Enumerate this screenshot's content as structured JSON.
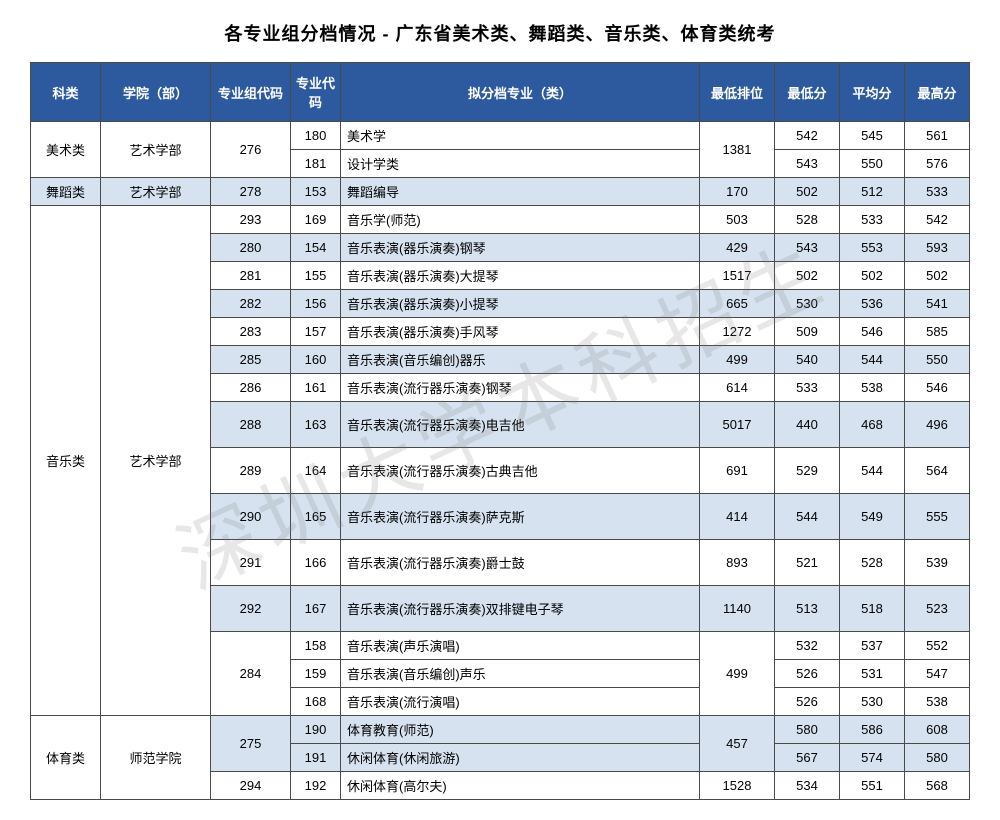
{
  "title": "各专业组分档情况 - 广东省美术类、舞蹈类、音乐类、体育类统考",
  "watermark": "深圳大学本科招生",
  "header_bg": "#2d5a9e",
  "alt_row_bg": "#d6e2ef",
  "plain_row_bg": "#ffffff",
  "columns": [
    "科类",
    "学院（部）",
    "专业组代码",
    "专业代码",
    "拟分档专业（类）",
    "最低排位",
    "最低分",
    "平均分",
    "最高分"
  ],
  "col_widths": [
    "70px",
    "110px",
    "80px",
    "50px",
    "auto",
    "75px",
    "65px",
    "65px",
    "65px"
  ],
  "groups": [
    {
      "category": "美术类",
      "college": "艺术学部",
      "alt": false,
      "codes": [
        {
          "code": "276",
          "rank": "1381",
          "alt": false,
          "rows": [
            {
              "mcode": "180",
              "major": "美术学",
              "min": "542",
              "avg": "545",
              "max": "561"
            },
            {
              "mcode": "181",
              "major": "设计学类",
              "min": "543",
              "avg": "550",
              "max": "576"
            }
          ]
        }
      ]
    },
    {
      "category": "舞蹈类",
      "college": "艺术学部",
      "alt": true,
      "codes": [
        {
          "code": "278",
          "rank": "170",
          "alt": true,
          "rows": [
            {
              "mcode": "153",
              "major": "舞蹈编导",
              "min": "502",
              "avg": "512",
              "max": "533"
            }
          ]
        }
      ]
    },
    {
      "category": "音乐类",
      "college": "艺术学部",
      "alt": false,
      "codes": [
        {
          "code": "293",
          "rank": "503",
          "alt": false,
          "rows": [
            {
              "mcode": "169",
              "major": "音乐学(师范)",
              "min": "528",
              "avg": "533",
              "max": "542"
            }
          ]
        },
        {
          "code": "280",
          "rank": "429",
          "alt": true,
          "rows": [
            {
              "mcode": "154",
              "major": "音乐表演(器乐演奏)钢琴",
              "min": "543",
              "avg": "553",
              "max": "593"
            }
          ]
        },
        {
          "code": "281",
          "rank": "1517",
          "alt": false,
          "rows": [
            {
              "mcode": "155",
              "major": "音乐表演(器乐演奏)大提琴",
              "min": "502",
              "avg": "502",
              "max": "502"
            }
          ]
        },
        {
          "code": "282",
          "rank": "665",
          "alt": true,
          "rows": [
            {
              "mcode": "156",
              "major": "音乐表演(器乐演奏)小提琴",
              "min": "530",
              "avg": "536",
              "max": "541"
            }
          ]
        },
        {
          "code": "283",
          "rank": "1272",
          "alt": false,
          "rows": [
            {
              "mcode": "157",
              "major": "音乐表演(器乐演奏)手风琴",
              "min": "509",
              "avg": "546",
              "max": "585"
            }
          ]
        },
        {
          "code": "285",
          "rank": "499",
          "alt": true,
          "rows": [
            {
              "mcode": "160",
              "major": "音乐表演(音乐编创)器乐",
              "min": "540",
              "avg": "544",
              "max": "550"
            }
          ]
        },
        {
          "code": "286",
          "rank": "614",
          "alt": false,
          "rows": [
            {
              "mcode": "161",
              "major": "音乐表演(流行器乐演奏)钢琴",
              "min": "533",
              "avg": "538",
              "max": "546"
            }
          ]
        },
        {
          "code": "288",
          "rank": "5017",
          "alt": true,
          "tall": true,
          "rows": [
            {
              "mcode": "163",
              "major": "音乐表演(流行器乐演奏)电吉他",
              "min": "440",
              "avg": "468",
              "max": "496"
            }
          ]
        },
        {
          "code": "289",
          "rank": "691",
          "alt": false,
          "tall": true,
          "rows": [
            {
              "mcode": "164",
              "major": "音乐表演(流行器乐演奏)古典吉他",
              "min": "529",
              "avg": "544",
              "max": "564"
            }
          ]
        },
        {
          "code": "290",
          "rank": "414",
          "alt": true,
          "tall": true,
          "rows": [
            {
              "mcode": "165",
              "major": "音乐表演(流行器乐演奏)萨克斯",
              "min": "544",
              "avg": "549",
              "max": "555"
            }
          ]
        },
        {
          "code": "291",
          "rank": "893",
          "alt": false,
          "tall": true,
          "rows": [
            {
              "mcode": "166",
              "major": "音乐表演(流行器乐演奏)爵士鼓",
              "min": "521",
              "avg": "528",
              "max": "539"
            }
          ]
        },
        {
          "code": "292",
          "rank": "1140",
          "alt": true,
          "tall": true,
          "rows": [
            {
              "mcode": "167",
              "major": "音乐表演(流行器乐演奏)双排键电子琴",
              "min": "513",
              "avg": "518",
              "max": "523"
            }
          ]
        },
        {
          "code": "284",
          "rank": "499",
          "alt": false,
          "rows": [
            {
              "mcode": "158",
              "major": "音乐表演(声乐演唱)",
              "min": "532",
              "avg": "537",
              "max": "552"
            },
            {
              "mcode": "159",
              "major": "音乐表演(音乐编创)声乐",
              "min": "526",
              "avg": "531",
              "max": "547"
            },
            {
              "mcode": "168",
              "major": "音乐表演(流行演唱)",
              "min": "526",
              "avg": "530",
              "max": "538"
            }
          ]
        }
      ]
    },
    {
      "category": "体育类",
      "college": "师范学院",
      "alt": false,
      "codes": [
        {
          "code": "275",
          "rank": "457",
          "alt": true,
          "rows": [
            {
              "mcode": "190",
              "major": "体育教育(师范)",
              "min": "580",
              "avg": "586",
              "max": "608"
            },
            {
              "mcode": "191",
              "major": "休闲体育(休闲旅游)",
              "min": "567",
              "avg": "574",
              "max": "580"
            }
          ]
        },
        {
          "code": "294",
          "rank": "1528",
          "alt": false,
          "rows": [
            {
              "mcode": "192",
              "major": "休闲体育(高尔夫)",
              "min": "534",
              "avg": "551",
              "max": "568"
            }
          ]
        }
      ]
    }
  ]
}
